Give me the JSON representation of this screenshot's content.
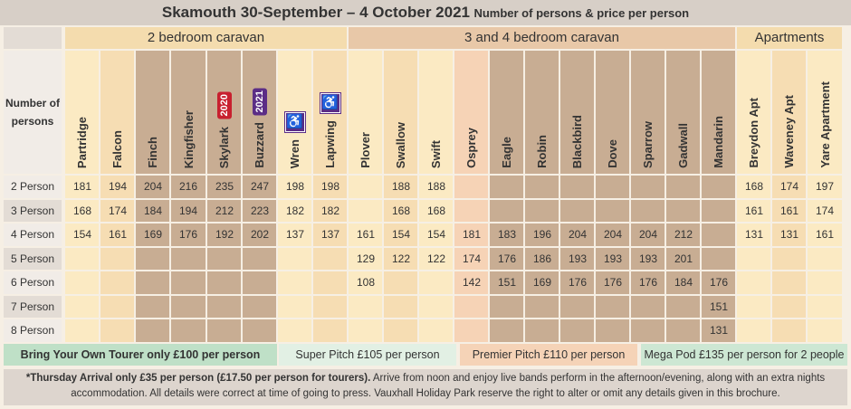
{
  "header": {
    "title_main": "Skamouth 30-September – 4 October 2021",
    "title_sub": "Number of persons & price per person"
  },
  "groups": [
    {
      "label": "2 bedroom caravan",
      "color": "#f4dcae"
    },
    {
      "label": "3 and 4 bedroom caravan",
      "color": "#e8c8a8"
    },
    {
      "label": "Apartments",
      "color": "#f4dcae"
    }
  ],
  "row_header_label": "Number of persons",
  "columns": [
    {
      "name": "Partridge",
      "color": "#fbeac3"
    },
    {
      "name": "Falcon",
      "color": "#f6ddb3"
    },
    {
      "name": "Finch",
      "color": "#c8ad93"
    },
    {
      "name": "Kingfisher",
      "color": "#c8ad93"
    },
    {
      "name": "Skylark",
      "color": "#c8ad93",
      "badge": "2020",
      "badge_color": "#c8202f"
    },
    {
      "name": "Buzzard",
      "color": "#c8ad93",
      "badge": "2021",
      "badge_color": "#5b2d86"
    },
    {
      "name": "Wren",
      "color": "#fbeac3",
      "icon": "wheelchair-icon"
    },
    {
      "name": "Lapwing",
      "color": "#f6ddb3",
      "icon": "wheelchair-icon"
    },
    {
      "name": "Plover",
      "color": "#fbeac3"
    },
    {
      "name": "Swallow",
      "color": "#f6ddb3"
    },
    {
      "name": "Swift",
      "color": "#fbeac3"
    },
    {
      "name": "Osprey",
      "color": "#f6d3b6"
    },
    {
      "name": "Eagle",
      "color": "#c8ad93"
    },
    {
      "name": "Robin",
      "color": "#c8ad93"
    },
    {
      "name": "Blackbird",
      "color": "#c8ad93"
    },
    {
      "name": "Dove",
      "color": "#c8ad93"
    },
    {
      "name": "Sparrow",
      "color": "#c8ad93"
    },
    {
      "name": "Gadwall",
      "color": "#c8ad93"
    },
    {
      "name": "Mandarin",
      "color": "#c8ad93"
    },
    {
      "name": "Breydon Apt",
      "color": "#fbeac3"
    },
    {
      "name": "Waveney Apt",
      "color": "#f6ddb3"
    },
    {
      "name": "Yare Apartment",
      "color": "#fbeac3"
    }
  ],
  "rows": [
    {
      "label": "2 Person",
      "values": [
        "181",
        "194",
        "204",
        "216",
        "235",
        "247",
        "198",
        "198",
        "",
        "188",
        "188",
        "",
        "",
        "",
        "",
        "",
        "",
        "",
        "",
        "168",
        "174",
        "197"
      ]
    },
    {
      "label": "3 Person",
      "values": [
        "168",
        "174",
        "184",
        "194",
        "212",
        "223",
        "182",
        "182",
        "",
        "168",
        "168",
        "",
        "",
        "",
        "",
        "",
        "",
        "",
        "",
        "161",
        "161",
        "174"
      ]
    },
    {
      "label": "4 Person",
      "values": [
        "154",
        "161",
        "169",
        "176",
        "192",
        "202",
        "137",
        "137",
        "161",
        "154",
        "154",
        "181",
        "183",
        "196",
        "204",
        "204",
        "204",
        "212",
        "",
        "131",
        "131",
        "161"
      ]
    },
    {
      "label": "5 Person",
      "values": [
        "",
        "",
        "",
        "",
        "",
        "",
        "",
        "",
        "129",
        "122",
        "122",
        "174",
        "176",
        "186",
        "193",
        "193",
        "193",
        "201",
        "",
        "",
        "",
        ""
      ]
    },
    {
      "label": "6 Person",
      "values": [
        "",
        "",
        "",
        "",
        "",
        "",
        "",
        "",
        "108",
        "",
        "",
        "142",
        "151",
        "169",
        "176",
        "176",
        "176",
        "184",
        "176",
        "",
        "",
        ""
      ]
    },
    {
      "label": "7 Person",
      "values": [
        "",
        "",
        "",
        "",
        "",
        "",
        "",
        "",
        "",
        "",
        "",
        "",
        "",
        "",
        "",
        "",
        "",
        "",
        "151",
        "",
        "",
        ""
      ]
    },
    {
      "label": "8 Person",
      "values": [
        "",
        "",
        "",
        "",
        "",
        "",
        "",
        "",
        "",
        "",
        "",
        "",
        "",
        "",
        "",
        "",
        "",
        "",
        "131",
        "",
        "",
        ""
      ]
    }
  ],
  "footer_items": [
    {
      "label": "Bring Your Own Tourer only £100 per person",
      "bold": true,
      "color": "#bfe0c7"
    },
    {
      "label": "Super Pitch £105 per person",
      "bold": false,
      "color": "#e2f0e4"
    },
    {
      "label": "Premier Pitch £110 per person",
      "bold": false,
      "color": "#f5d3b7"
    },
    {
      "label": "Mega Pod £135 per person for 2 people",
      "bold": false,
      "color": "#cde7d3"
    }
  ],
  "note": {
    "bold": "*Thursday Arrival only £35 per person (£17.50 per person for tourers).",
    "text": " Arrive from noon and enjoy live bands perform in the afternoon/evening, along with an extra nights accommodation. All details were correct at time of going to press. Vauxhall Holiday Park reserve the right to alter or omit any details given in this brochure."
  },
  "colors": {
    "row_label_odd": "#f1ece7",
    "row_label_even": "#e3dcd5",
    "mandarin_empty": "#c8ad93"
  }
}
